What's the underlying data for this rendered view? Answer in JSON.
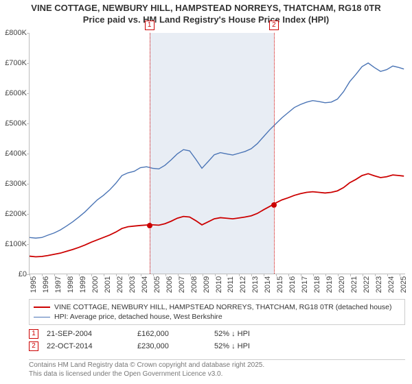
{
  "title_line1": "VINE COTTAGE, NEWBURY HILL, HAMPSTEAD NORREYS, THATCHAM, RG18 0TR",
  "title_line2": "Price paid vs. HM Land Registry's House Price Index (HPI)",
  "chart": {
    "type": "line",
    "background_color": "#ffffff",
    "axis_color": "#bbbbbb",
    "x_min_year": 1995,
    "x_max_year": 2025.5,
    "x_ticks": [
      1995,
      1996,
      1997,
      1998,
      1999,
      2000,
      2001,
      2002,
      2003,
      2004,
      2005,
      2006,
      2007,
      2008,
      2009,
      2010,
      2011,
      2012,
      2013,
      2014,
      2015,
      2016,
      2017,
      2018,
      2019,
      2020,
      2021,
      2022,
      2023,
      2024,
      2025
    ],
    "y_min": 0,
    "y_max": 800000,
    "y_ticks": [
      {
        "v": 0,
        "label": "£0"
      },
      {
        "v": 100000,
        "label": "£100K"
      },
      {
        "v": 200000,
        "label": "£200K"
      },
      {
        "v": 300000,
        "label": "£300K"
      },
      {
        "v": 400000,
        "label": "£400K"
      },
      {
        "v": 500000,
        "label": "£500K"
      },
      {
        "v": 600000,
        "label": "£600K"
      },
      {
        "v": 700000,
        "label": "£700K"
      },
      {
        "v": 800000,
        "label": "£800K"
      }
    ],
    "shaded_band": {
      "from_year": 2004.72,
      "to_year": 2014.81,
      "color": "#e8edf4"
    },
    "vlines": [
      {
        "year": 2004.72,
        "color": "#cc0000",
        "label": "1"
      },
      {
        "year": 2014.81,
        "color": "#cc0000",
        "label": "2"
      }
    ],
    "series": [
      {
        "name": "hpi",
        "color": "#4a74b5",
        "line_width": 1.4,
        "points": [
          [
            1995,
            120000
          ],
          [
            1995.5,
            118000
          ],
          [
            1996,
            120000
          ],
          [
            1996.5,
            128000
          ],
          [
            1997,
            135000
          ],
          [
            1997.5,
            145000
          ],
          [
            1998,
            158000
          ],
          [
            1998.5,
            172000
          ],
          [
            1999,
            188000
          ],
          [
            1999.5,
            205000
          ],
          [
            2000,
            225000
          ],
          [
            2000.5,
            245000
          ],
          [
            2001,
            260000
          ],
          [
            2001.5,
            278000
          ],
          [
            2002,
            300000
          ],
          [
            2002.5,
            326000
          ],
          [
            2003,
            335000
          ],
          [
            2003.5,
            340000
          ],
          [
            2004,
            352000
          ],
          [
            2004.5,
            355000
          ],
          [
            2005,
            350000
          ],
          [
            2005.5,
            348000
          ],
          [
            2006,
            360000
          ],
          [
            2006.5,
            378000
          ],
          [
            2007,
            398000
          ],
          [
            2007.5,
            412000
          ],
          [
            2008,
            408000
          ],
          [
            2008.5,
            380000
          ],
          [
            2009,
            350000
          ],
          [
            2009.5,
            372000
          ],
          [
            2010,
            395000
          ],
          [
            2010.5,
            402000
          ],
          [
            2011,
            398000
          ],
          [
            2011.5,
            394000
          ],
          [
            2012,
            400000
          ],
          [
            2012.5,
            406000
          ],
          [
            2013,
            415000
          ],
          [
            2013.5,
            432000
          ],
          [
            2014,
            455000
          ],
          [
            2014.5,
            478000
          ],
          [
            2015,
            498000
          ],
          [
            2015.5,
            518000
          ],
          [
            2016,
            535000
          ],
          [
            2016.5,
            552000
          ],
          [
            2017,
            562000
          ],
          [
            2017.5,
            570000
          ],
          [
            2018,
            575000
          ],
          [
            2018.5,
            572000
          ],
          [
            2019,
            568000
          ],
          [
            2019.5,
            570000
          ],
          [
            2020,
            580000
          ],
          [
            2020.5,
            605000
          ],
          [
            2021,
            638000
          ],
          [
            2021.5,
            662000
          ],
          [
            2022,
            688000
          ],
          [
            2022.5,
            700000
          ],
          [
            2023,
            685000
          ],
          [
            2023.5,
            672000
          ],
          [
            2024,
            678000
          ],
          [
            2024.5,
            690000
          ],
          [
            2025,
            685000
          ],
          [
            2025.4,
            680000
          ]
        ]
      },
      {
        "name": "price-paid",
        "color": "#cc0000",
        "line_width": 1.8,
        "points": [
          [
            1995,
            58000
          ],
          [
            1995.5,
            56000
          ],
          [
            1996,
            57000
          ],
          [
            1996.5,
            60000
          ],
          [
            1997,
            64000
          ],
          [
            1997.5,
            68000
          ],
          [
            1998,
            74000
          ],
          [
            1998.5,
            80000
          ],
          [
            1999,
            87000
          ],
          [
            1999.5,
            95000
          ],
          [
            2000,
            104000
          ],
          [
            2000.5,
            112000
          ],
          [
            2001,
            120000
          ],
          [
            2001.5,
            128000
          ],
          [
            2002,
            138000
          ],
          [
            2002.5,
            150000
          ],
          [
            2003,
            156000
          ],
          [
            2003.5,
            158000
          ],
          [
            2004,
            160000
          ],
          [
            2004.72,
            162000
          ],
          [
            2005,
            162000
          ],
          [
            2005.5,
            161000
          ],
          [
            2006,
            166000
          ],
          [
            2006.5,
            174000
          ],
          [
            2007,
            184000
          ],
          [
            2007.5,
            190000
          ],
          [
            2008,
            188000
          ],
          [
            2008.5,
            176000
          ],
          [
            2009,
            162000
          ],
          [
            2009.5,
            172000
          ],
          [
            2010,
            182000
          ],
          [
            2010.5,
            186000
          ],
          [
            2011,
            184000
          ],
          [
            2011.5,
            182000
          ],
          [
            2012,
            185000
          ],
          [
            2012.5,
            188000
          ],
          [
            2013,
            192000
          ],
          [
            2013.5,
            200000
          ],
          [
            2014,
            212000
          ],
          [
            2014.81,
            230000
          ],
          [
            2015,
            235000
          ],
          [
            2015.5,
            245000
          ],
          [
            2016,
            252000
          ],
          [
            2016.5,
            260000
          ],
          [
            2017,
            266000
          ],
          [
            2017.5,
            270000
          ],
          [
            2018,
            272000
          ],
          [
            2018.5,
            270000
          ],
          [
            2019,
            268000
          ],
          [
            2019.5,
            270000
          ],
          [
            2020,
            275000
          ],
          [
            2020.5,
            286000
          ],
          [
            2021,
            302000
          ],
          [
            2021.5,
            313000
          ],
          [
            2022,
            326000
          ],
          [
            2022.5,
            332000
          ],
          [
            2023,
            325000
          ],
          [
            2023.5,
            319000
          ],
          [
            2024,
            322000
          ],
          [
            2024.5,
            328000
          ],
          [
            2025,
            326000
          ],
          [
            2025.4,
            324000
          ]
        ]
      }
    ],
    "sale_points": [
      {
        "year": 2004.72,
        "value": 162000,
        "color": "#cc0000"
      },
      {
        "year": 2014.81,
        "value": 230000,
        "color": "#cc0000"
      }
    ]
  },
  "legend": {
    "border_color": "#cccccc",
    "items": [
      {
        "color": "#cc0000",
        "width": 2,
        "label": "VINE COTTAGE, NEWBURY HILL, HAMPSTEAD NORREYS, THATCHAM, RG18 0TR (detached house)"
      },
      {
        "color": "#4a74b5",
        "width": 1.4,
        "label": "HPI: Average price, detached house, West Berkshire"
      }
    ]
  },
  "sales": [
    {
      "marker": "1",
      "marker_color": "#cc0000",
      "date": "21-SEP-2004",
      "price": "£162,000",
      "hpi": "52% ↓ HPI"
    },
    {
      "marker": "2",
      "marker_color": "#cc0000",
      "date": "22-OCT-2014",
      "price": "£230,000",
      "hpi": "52% ↓ HPI"
    }
  ],
  "footer_line1": "Contains HM Land Registry data © Crown copyright and database right 2025.",
  "footer_line2": "This data is licensed under the Open Government Licence v3.0."
}
